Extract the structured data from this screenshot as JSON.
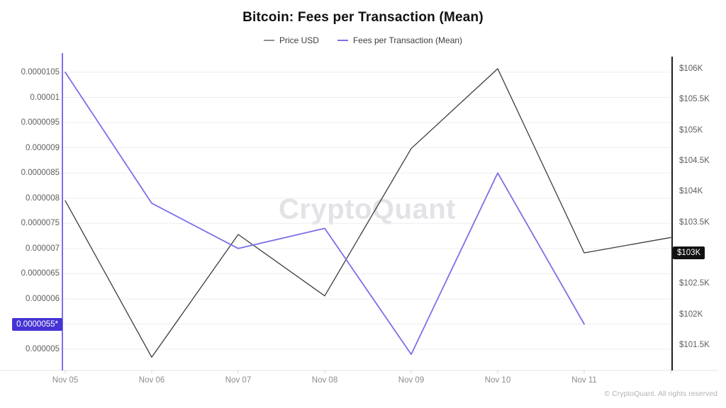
{
  "title": "Bitcoin: Fees per Transaction (Mean)",
  "legend": [
    {
      "label": "Price USD",
      "swatch_color": "#8f8f8f"
    },
    {
      "label": "Fees per Transaction (Mean)",
      "swatch_color": "#7b70e8"
    }
  ],
  "watermark": "CryptoQuant",
  "copyright": "© CryptoQuant. All rights reserved",
  "colors": {
    "price_line": "#3c3c3c",
    "fees_line": "#7b70e8",
    "left_axis": "#7b70e8",
    "right_axis": "#1f1f1f",
    "left_highlight_bg": "#4533d4",
    "right_highlight_bg": "#111111",
    "gridline": "#ededf0",
    "baseline": "#e3e3e5"
  },
  "chart_data": {
    "type": "line",
    "title": "Bitcoin: Fees per Transaction (Mean)",
    "legend_position": "top",
    "grid": true,
    "x_categories": [
      "Nov 05",
      "Nov 06",
      "Nov 07",
      "Nov 08",
      "Nov 09",
      "Nov 10",
      "Nov 11",
      ""
    ],
    "series": [
      {
        "name": "Price USD",
        "axis": "right",
        "color": "#3c3c3c",
        "units": "thousand USD",
        "values": [
          103.85,
          101.3,
          103.3,
          102.3,
          104.7,
          106.0,
          103.0,
          103.25
        ]
      },
      {
        "name": "Fees per Transaction (Mean)",
        "axis": "left",
        "color": "#7b70e8",
        "units": "BTC",
        "values": [
          1.05e-05,
          7.9e-06,
          7e-06,
          7.4e-06,
          4.9e-06,
          8.5e-06,
          5.5e-06,
          null
        ]
      }
    ],
    "left_axis": {
      "side": "left",
      "range": [
        4.8e-06,
        1.06e-05
      ],
      "ticks": [
        {
          "label": "0.0000105",
          "value": 1.05e-05
        },
        {
          "label": "0.00001",
          "value": 1e-05
        },
        {
          "label": "0.0000095",
          "value": 9.5e-06
        },
        {
          "label": "0.000009",
          "value": 9e-06
        },
        {
          "label": "0.0000085",
          "value": 8.5e-06
        },
        {
          "label": "0.000008",
          "value": 8e-06
        },
        {
          "label": "0.0000075",
          "value": 7.5e-06
        },
        {
          "label": "0.000007",
          "value": 7e-06
        },
        {
          "label": "0.0000065",
          "value": 6.5e-06
        },
        {
          "label": "0.000006",
          "value": 6e-06
        },
        {
          "label": "0.000005",
          "value": 5e-06
        }
      ],
      "highlight": {
        "label": "0.0000055*",
        "value": 5.5e-06
      }
    },
    "right_axis": {
      "side": "right",
      "range": [
        101.2,
        106.2
      ],
      "ticks": [
        {
          "label": "$106K",
          "value": 106
        },
        {
          "label": "$105.5K",
          "value": 105.5
        },
        {
          "label": "$105K",
          "value": 105
        },
        {
          "label": "$104.5K",
          "value": 104.5
        },
        {
          "label": "$104K",
          "value": 104
        },
        {
          "label": "$103.5K",
          "value": 103.5
        },
        {
          "label": "$102.5K",
          "value": 102.5
        },
        {
          "label": "$102K",
          "value": 102
        },
        {
          "label": "$101.5K",
          "value": 101.5
        }
      ],
      "highlight": {
        "label": "$103K",
        "value": 103
      }
    }
  }
}
